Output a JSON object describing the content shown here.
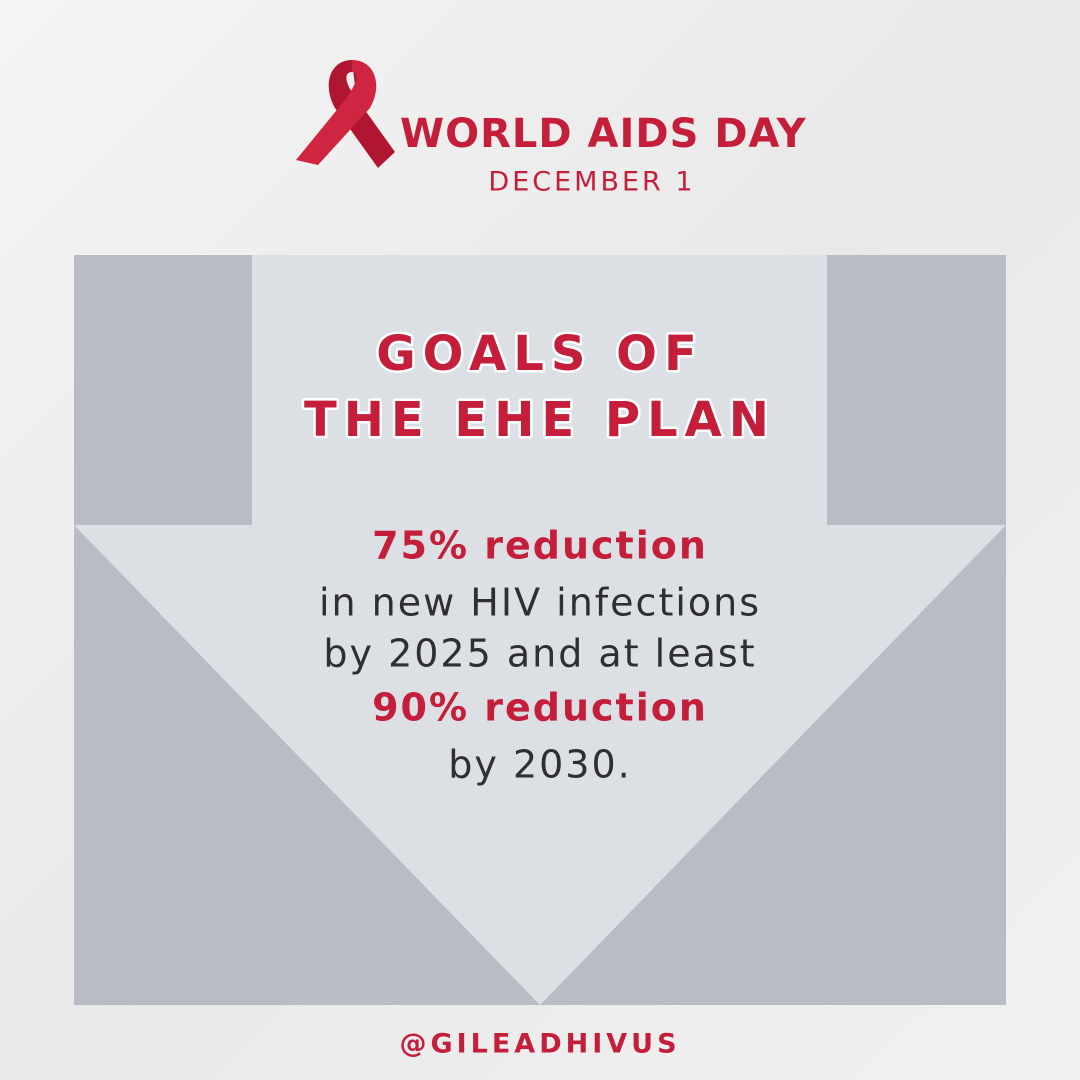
{
  "header": {
    "title": "WORLD AIDS DAY",
    "date": "DECEMBER 1"
  },
  "goals": {
    "title": [
      "GOALS OF",
      "THE EHE PLAN"
    ],
    "lines": [
      "75% reduction",
      "in new HIV infections",
      "by 2025 and at least",
      "90% reduction",
      "by 2030."
    ]
  },
  "footer": {
    "handle": "@GILEADHIVUS"
  }
}
